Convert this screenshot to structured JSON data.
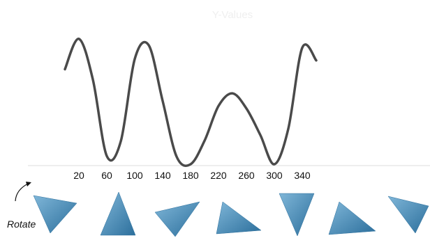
{
  "chart_data": {
    "type": "line",
    "title": "Y-Values",
    "xlabel": "",
    "ylabel": "",
    "xlim": [
      0,
      360
    ],
    "ylim": [
      -1,
      1
    ],
    "x_ticks": [
      20,
      60,
      100,
      140,
      180,
      220,
      260,
      300,
      340
    ],
    "grid": false,
    "legend": "none",
    "series": [
      {
        "x": [
          0,
          20,
          40,
          60,
          80,
          100,
          120,
          140,
          160,
          180,
          200,
          220,
          240,
          260,
          280,
          300,
          320,
          340,
          360
        ],
        "values": [
          0.5,
          0.98,
          0.34,
          -0.87,
          -0.64,
          0.66,
          0.88,
          0.0,
          -0.88,
          -1.0,
          -0.63,
          -0.08,
          0.12,
          -0.12,
          -0.54,
          -1.0,
          -0.44,
          0.84,
          0.64
        ]
      }
    ]
  },
  "controls": {
    "rotate_label": "Rotate",
    "rotate_icon": "curved-arrow-icon"
  },
  "triangles": [
    {
      "orientation": "pointing-down-right",
      "icon": "triangle-icon"
    },
    {
      "orientation": "pointing-up",
      "icon": "triangle-icon"
    },
    {
      "orientation": "pointing-down-left",
      "icon": "triangle-icon"
    },
    {
      "orientation": "pointing-right",
      "icon": "triangle-icon"
    },
    {
      "orientation": "pointing-down",
      "icon": "triangle-icon"
    },
    {
      "orientation": "pointing-right",
      "icon": "triangle-icon"
    },
    {
      "orientation": "pointing-down-right",
      "icon": "triangle-icon"
    }
  ],
  "colors": {
    "line": "#4a4a4a",
    "axis": "#dcdcdc",
    "triangle_light": "#79b2d6",
    "triangle_dark": "#2c6f9c",
    "title": "#efefef"
  }
}
